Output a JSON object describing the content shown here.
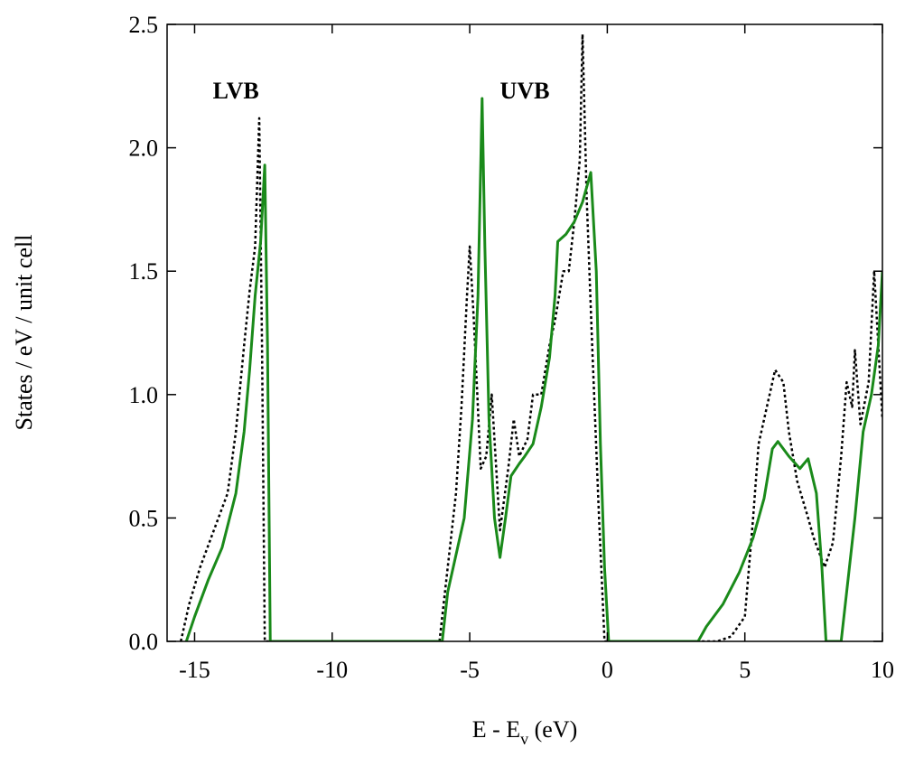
{
  "chart_data": {
    "type": "line",
    "ylabel": "States / eV / unit cell",
    "xlabel": {
      "text": "E - E",
      "subscript": "v",
      "suffix": " (eV)"
    },
    "xlim": [
      -16,
      10
    ],
    "ylim": [
      0,
      2.5
    ],
    "xticks": [
      -15,
      -10,
      -5,
      0,
      5,
      10
    ],
    "yticks": [
      {
        "value": 0,
        "label": "0.0"
      },
      0.5,
      {
        "value": 1,
        "label": "1.0"
      },
      1.5,
      {
        "value": 2,
        "label": "2.0"
      },
      2.5
    ],
    "annotations": [
      {
        "text": "LVB",
        "x": -13.5,
        "y": 2.2
      },
      {
        "text": "UVB",
        "x": -3.0,
        "y": 2.2
      }
    ],
    "series": [
      {
        "color": "#000000",
        "dash": "dotted",
        "x": [
          -15.5,
          -15.2,
          -14.8,
          -14.3,
          -13.8,
          -13.5,
          -13.2,
          -13,
          -12.8,
          -12.65,
          -12.55,
          -12.45,
          -6.1,
          -5.8,
          -5.5,
          -5.3,
          -5.1,
          -5.0,
          -4.85,
          -4.6,
          -4.4,
          -4.2,
          -3.9,
          -3.6,
          -3.4,
          -3.2,
          -2.9,
          -2.7,
          -2.4,
          -2.1,
          -1.9,
          -1.6,
          -1.4,
          -1.2,
          -1.0,
          -0.9,
          -0.75,
          -0.55,
          -0.3,
          -0.1,
          4.0,
          4.5,
          5.0,
          5.3,
          5.5,
          5.8,
          6.1,
          6.4,
          6.6,
          6.9,
          7.3,
          7.5,
          7.9,
          8.2,
          8.5,
          8.7,
          8.9,
          9.0,
          9.2,
          9.5,
          9.7,
          9.8,
          10
        ],
        "values": [
          0,
          0.15,
          0.3,
          0.45,
          0.6,
          0.85,
          1.2,
          1.42,
          1.6,
          2.12,
          1.2,
          0,
          0,
          0.3,
          0.6,
          0.95,
          1.4,
          1.6,
          1.3,
          0.7,
          0.75,
          1.0,
          0.45,
          0.7,
          0.9,
          0.75,
          0.82,
          1.0,
          1.0,
          1.2,
          1.3,
          1.5,
          1.5,
          1.7,
          1.95,
          2.46,
          1.8,
          1.2,
          0.5,
          0,
          0,
          0.02,
          0.1,
          0.5,
          0.8,
          0.95,
          1.1,
          1.05,
          0.85,
          0.65,
          0.5,
          0.42,
          0.3,
          0.4,
          0.75,
          1.05,
          0.95,
          1.18,
          0.88,
          1.05,
          1.5,
          1.3,
          0.9
        ]
      },
      {
        "color": "#1a8a1a",
        "dash": "solid",
        "x": [
          -15.3,
          -15.0,
          -14.5,
          -14,
          -13.5,
          -13.2,
          -13,
          -12.8,
          -12.6,
          -12.45,
          -12.35,
          -12.25,
          -6.0,
          -5.8,
          -5.5,
          -5.2,
          -4.9,
          -4.7,
          -4.55,
          -4.45,
          -4.3,
          -4.1,
          -3.9,
          -3.7,
          -3.5,
          -3.2,
          -3.0,
          -2.7,
          -2.4,
          -2.1,
          -1.9,
          -1.8,
          -1.5,
          -1.2,
          -0.9,
          -0.6,
          -0.4,
          -0.25,
          -0.1,
          0.05,
          3.3,
          3.6,
          4.2,
          4.8,
          5.3,
          5.7,
          6.0,
          6.2,
          6.6,
          7.0,
          7.3,
          7.6,
          7.8,
          7.95,
          8.5,
          8.7,
          9.0,
          9.3,
          9.6,
          9.85,
          10
        ],
        "values": [
          0,
          0.1,
          0.25,
          0.38,
          0.6,
          0.85,
          1.1,
          1.4,
          1.62,
          1.93,
          1.2,
          0,
          0,
          0.2,
          0.35,
          0.5,
          0.9,
          1.4,
          2.2,
          1.6,
          0.9,
          0.5,
          0.34,
          0.5,
          0.67,
          0.72,
          0.75,
          0.8,
          0.95,
          1.15,
          1.4,
          1.62,
          1.65,
          1.7,
          1.78,
          1.9,
          1.5,
          0.8,
          0.3,
          0,
          0,
          0.06,
          0.15,
          0.28,
          0.42,
          0.58,
          0.78,
          0.81,
          0.75,
          0.7,
          0.74,
          0.6,
          0.3,
          0,
          0,
          0.2,
          0.5,
          0.85,
          1.0,
          1.2,
          1.5
        ]
      }
    ]
  }
}
